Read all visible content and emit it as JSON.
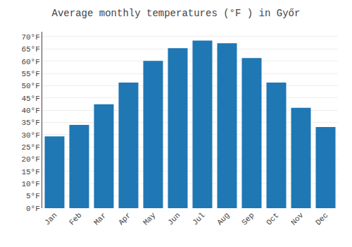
{
  "chart_data": {
    "type": "bar",
    "title": "Average monthly temperatures (°F ) in Győr",
    "categories": [
      "Jan",
      "Feb",
      "Mar",
      "Apr",
      "May",
      "Jun",
      "Jul",
      "Aug",
      "Sep",
      "Oct",
      "Nov",
      "Dec"
    ],
    "values": [
      29.3,
      34.0,
      42.4,
      51.3,
      60.1,
      65.3,
      68.4,
      67.3,
      61.3,
      51.3,
      41.0,
      33.1
    ],
    "ylim": [
      0,
      72
    ],
    "yticks": [
      {
        "value": 0,
        "label": "0°F"
      },
      {
        "value": 5,
        "label": "5°F"
      },
      {
        "value": 10,
        "label": "10°F"
      },
      {
        "value": 15,
        "label": "15°F"
      },
      {
        "value": 20,
        "label": "20°F"
      },
      {
        "value": 25,
        "label": "25°F"
      },
      {
        "value": 30,
        "label": "30°F"
      },
      {
        "value": 35,
        "label": "35°F"
      },
      {
        "value": 40,
        "label": "40°F"
      },
      {
        "value": 45,
        "label": "45°F"
      },
      {
        "value": 50,
        "label": "50°F"
      },
      {
        "value": 55,
        "label": "55°F"
      },
      {
        "value": 60,
        "label": "60°F"
      },
      {
        "value": 65,
        "label": "65°F"
      },
      {
        "value": 70,
        "label": "70°F"
      }
    ],
    "grid": true
  }
}
